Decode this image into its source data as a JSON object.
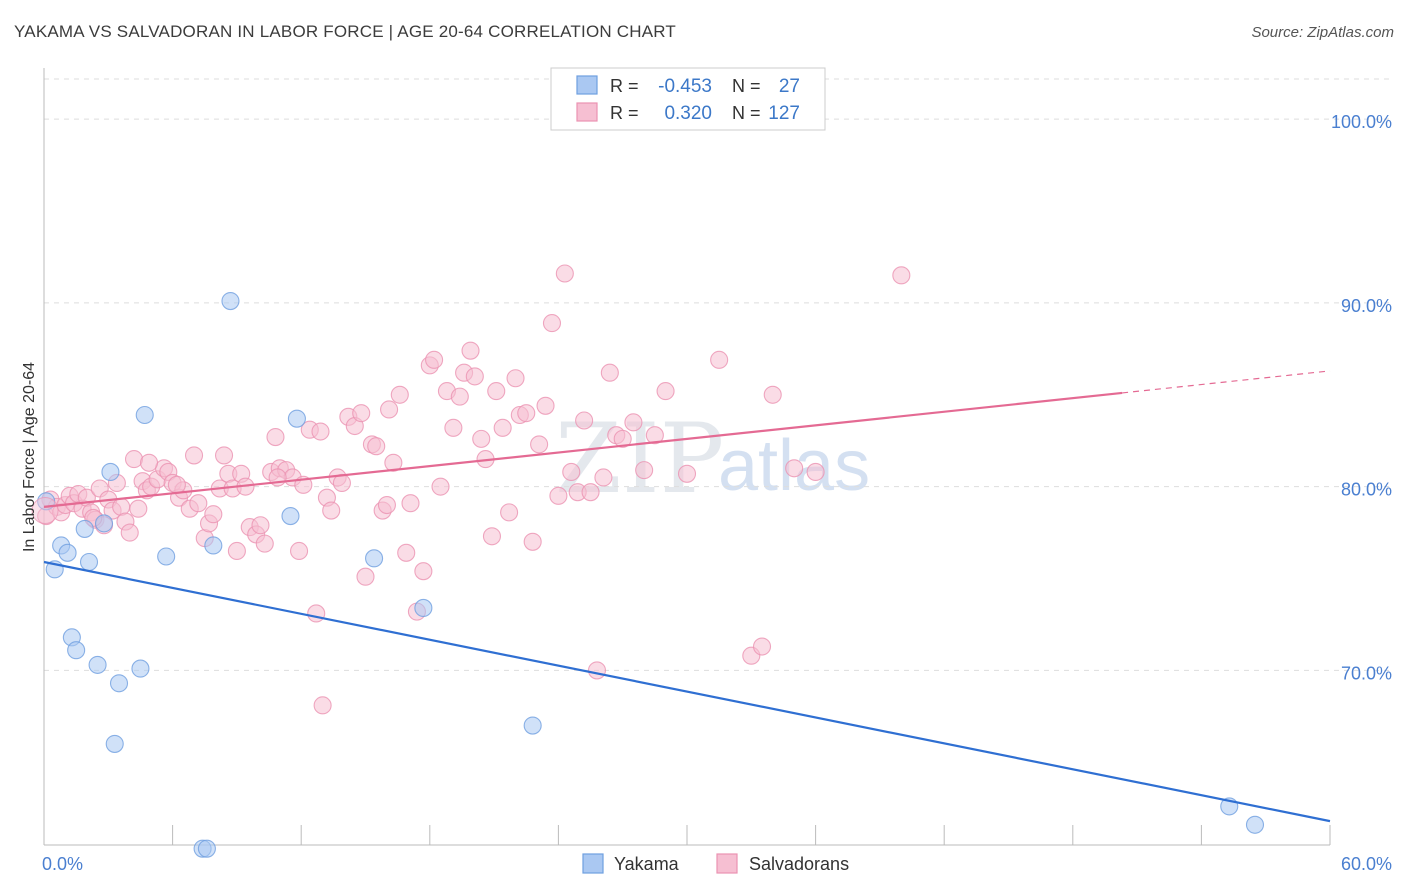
{
  "title": "YAKAMA VS SALVADORAN IN LABOR FORCE | AGE 20-64 CORRELATION CHART",
  "source": "Source: ZipAtlas.com",
  "watermark": {
    "part1": "ZIP",
    "part2": "atlas"
  },
  "chart_data": {
    "type": "scatter",
    "title": "YAKAMA VS SALVADORAN IN LABOR FORCE | AGE 20-64 CORRELATION CHART",
    "xlabel": "",
    "ylabel": "In Labor Force | Age 20-64",
    "xlim": [
      0,
      60
    ],
    "ylim": [
      60.5,
      103
    ],
    "x_tick_labels": {
      "left": "0.0%",
      "right": "60.0%"
    },
    "y_ticks": [
      {
        "value": 70,
        "label": "70.0%"
      },
      {
        "value": 80,
        "label": "80.0%"
      },
      {
        "value": 90,
        "label": "90.0%"
      },
      {
        "value": 100,
        "label": "100.0%"
      }
    ],
    "grid": true,
    "legend_position": "top-center",
    "colors": {
      "yakama_fill": "#aac8f2",
      "yakama_stroke": "#6f9fe0",
      "yakama_line": "#2f6fd2",
      "salv_fill": "#f6bfd2",
      "salv_stroke": "#eb92b2",
      "salv_line": "#e46a93",
      "tick_color": "#4a7fd0",
      "grid_color": "#dddddd"
    },
    "stats": [
      {
        "r_label": "R =",
        "r": "-0.453",
        "n_label": "N =",
        "n": "27"
      },
      {
        "r_label": "R =",
        "r": "0.320",
        "n_label": "N =",
        "n": "127"
      }
    ],
    "series": [
      {
        "name": "Yakama",
        "trend": {
          "x0": 0,
          "y0": 75.9,
          "x1": 60,
          "y1": 61.8
        },
        "points": [
          [
            0.1,
            79.2
          ],
          [
            0.5,
            75.5
          ],
          [
            0.8,
            76.8
          ],
          [
            1.1,
            76.4
          ],
          [
            1.3,
            71.8
          ],
          [
            1.5,
            71.1
          ],
          [
            1.9,
            77.7
          ],
          [
            2.1,
            75.9
          ],
          [
            2.5,
            70.3
          ],
          [
            2.8,
            78.0
          ],
          [
            3.1,
            80.8
          ],
          [
            3.3,
            66.0
          ],
          [
            3.5,
            69.3
          ],
          [
            4.5,
            70.1
          ],
          [
            4.7,
            83.9
          ],
          [
            5.7,
            76.2
          ],
          [
            7.4,
            60.3
          ],
          [
            7.6,
            60.3
          ],
          [
            7.9,
            76.8
          ],
          [
            8.7,
            90.1
          ],
          [
            11.5,
            78.4
          ],
          [
            11.8,
            83.7
          ],
          [
            15.4,
            76.1
          ],
          [
            17.7,
            73.4
          ],
          [
            22.8,
            67.0
          ],
          [
            55.3,
            62.6
          ],
          [
            56.5,
            61.6
          ]
        ]
      },
      {
        "name": "Salvadorans",
        "trend": {
          "x0": 0,
          "y0": 78.9,
          "x1": 50.3,
          "y1": 85.1,
          "x_dash_end": 60,
          "y_dash_end": 86.3
        },
        "points": [
          [
            0.1,
            78.4
          ],
          [
            0.3,
            79.3
          ],
          [
            0.6,
            78.9
          ],
          [
            0.8,
            78.6
          ],
          [
            1.0,
            79.0
          ],
          [
            1.2,
            79.5
          ],
          [
            1.4,
            79.1
          ],
          [
            1.6,
            79.6
          ],
          [
            1.8,
            78.8
          ],
          [
            2.0,
            79.4
          ],
          [
            2.2,
            78.6
          ],
          [
            2.4,
            78.2
          ],
          [
            2.6,
            79.9
          ],
          [
            2.8,
            77.9
          ],
          [
            3.0,
            79.3
          ],
          [
            3.2,
            78.7
          ],
          [
            3.4,
            80.2
          ],
          [
            3.6,
            78.9
          ],
          [
            3.8,
            78.1
          ],
          [
            4.0,
            77.5
          ],
          [
            4.2,
            81.5
          ],
          [
            4.4,
            78.8
          ],
          [
            4.6,
            80.3
          ],
          [
            4.8,
            79.8
          ],
          [
            5.0,
            80.0
          ],
          [
            5.3,
            80.4
          ],
          [
            5.6,
            81.0
          ],
          [
            5.8,
            80.8
          ],
          [
            6.0,
            80.2
          ],
          [
            6.3,
            79.4
          ],
          [
            6.5,
            79.8
          ],
          [
            6.8,
            78.8
          ],
          [
            7.0,
            81.7
          ],
          [
            7.2,
            79.1
          ],
          [
            7.5,
            77.2
          ],
          [
            7.7,
            78.0
          ],
          [
            7.9,
            78.5
          ],
          [
            8.2,
            79.9
          ],
          [
            8.4,
            81.7
          ],
          [
            8.6,
            80.7
          ],
          [
            8.8,
            79.9
          ],
          [
            9.0,
            76.5
          ],
          [
            9.2,
            80.7
          ],
          [
            9.4,
            80.0
          ],
          [
            9.6,
            77.8
          ],
          [
            9.9,
            77.4
          ],
          [
            10.1,
            77.9
          ],
          [
            10.3,
            76.9
          ],
          [
            10.6,
            80.8
          ],
          [
            10.8,
            82.7
          ],
          [
            11.0,
            81.0
          ],
          [
            11.3,
            80.9
          ],
          [
            11.6,
            80.5
          ],
          [
            11.9,
            76.5
          ],
          [
            12.1,
            80.1
          ],
          [
            12.4,
            83.1
          ],
          [
            12.7,
            73.1
          ],
          [
            12.9,
            83.0
          ],
          [
            13.2,
            79.4
          ],
          [
            13.4,
            78.7
          ],
          [
            13.7,
            80.5
          ],
          [
            13.9,
            80.2
          ],
          [
            14.2,
            83.8
          ],
          [
            14.5,
            83.3
          ],
          [
            14.8,
            84.0
          ],
          [
            15.0,
            75.1
          ],
          [
            15.3,
            82.3
          ],
          [
            15.5,
            82.2
          ],
          [
            15.8,
            78.7
          ],
          [
            16.1,
            84.2
          ],
          [
            16.3,
            81.3
          ],
          [
            16.6,
            85.0
          ],
          [
            16.9,
            76.4
          ],
          [
            17.1,
            79.1
          ],
          [
            17.4,
            73.2
          ],
          [
            17.7,
            75.4
          ],
          [
            18.0,
            86.6
          ],
          [
            18.2,
            86.9
          ],
          [
            18.5,
            80.0
          ],
          [
            18.8,
            85.2
          ],
          [
            19.1,
            83.2
          ],
          [
            19.4,
            84.9
          ],
          [
            19.6,
            86.2
          ],
          [
            19.9,
            87.4
          ],
          [
            20.1,
            86.0
          ],
          [
            20.4,
            82.6
          ],
          [
            20.6,
            81.5
          ],
          [
            20.9,
            77.3
          ],
          [
            21.1,
            85.2
          ],
          [
            21.4,
            83.2
          ],
          [
            21.7,
            78.6
          ],
          [
            22.0,
            85.9
          ],
          [
            22.2,
            83.9
          ],
          [
            22.5,
            84.0
          ],
          [
            22.8,
            77.0
          ],
          [
            23.1,
            82.3
          ],
          [
            23.4,
            84.4
          ],
          [
            23.7,
            88.9
          ],
          [
            24.0,
            79.5
          ],
          [
            24.3,
            91.6
          ],
          [
            24.6,
            80.8
          ],
          [
            24.9,
            79.7
          ],
          [
            25.2,
            83.6
          ],
          [
            25.5,
            79.7
          ],
          [
            25.8,
            70.0
          ],
          [
            26.1,
            80.5
          ],
          [
            26.4,
            86.2
          ],
          [
            26.7,
            82.8
          ],
          [
            27.0,
            82.6
          ],
          [
            27.5,
            83.5
          ],
          [
            28.0,
            80.9
          ],
          [
            28.5,
            82.8
          ],
          [
            29.0,
            85.2
          ],
          [
            30.0,
            80.7
          ],
          [
            31.5,
            86.9
          ],
          [
            33.0,
            70.8
          ],
          [
            33.5,
            71.3
          ],
          [
            34.0,
            85.0
          ],
          [
            35.0,
            81.0
          ],
          [
            36.0,
            80.8
          ],
          [
            40.0,
            91.5
          ],
          [
            13.0,
            68.1
          ],
          [
            6.2,
            80.1
          ],
          [
            2.3,
            78.3
          ],
          [
            4.9,
            81.3
          ],
          [
            10.9,
            80.5
          ],
          [
            16.0,
            79.0
          ]
        ]
      }
    ]
  }
}
